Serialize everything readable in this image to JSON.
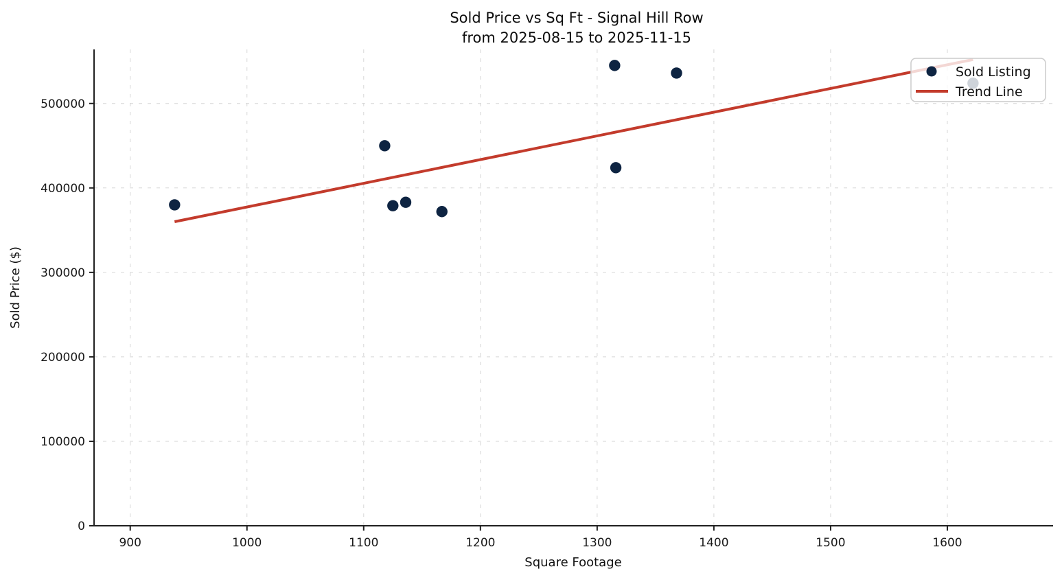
{
  "title": {
    "line1": "Sold Price vs Sq Ft - Signal Hill Row",
    "line2": "from 2025-08-15 to 2025-11-15"
  },
  "axes": {
    "xlabel": "Square Footage",
    "ylabel": "Sold Price ($)"
  },
  "legend": {
    "items": [
      {
        "label": "Sold Listing",
        "marker": "dot",
        "color": "#0e2442"
      },
      {
        "label": "Trend Line",
        "marker": "line",
        "color": "#c33b2c"
      }
    ]
  },
  "colors": {
    "point": "#0e2442",
    "trend": "#c33b2c",
    "grid": "#d6d6d6",
    "spine": "#1f1f1f",
    "legend_border": "#cccccc"
  },
  "chart_data": {
    "type": "scatter",
    "title": "Sold Price vs Sq Ft - Signal Hill Row\nfrom 2025-08-15 to 2025-11-15",
    "xlabel": "Square Footage",
    "ylabel": "Sold Price ($)",
    "xlim": [
      869,
      1690
    ],
    "ylim": [
      0,
      564000
    ],
    "x_ticks": [
      900,
      1000,
      1100,
      1200,
      1300,
      1400,
      1500,
      1600
    ],
    "y_ticks": [
      0,
      100000,
      200000,
      300000,
      400000,
      500000
    ],
    "grid": "dashed",
    "legend_position": "upper right",
    "series": [
      {
        "name": "Sold Listing",
        "type": "scatter",
        "color": "#0e2442",
        "marker_radius": 8.2,
        "points": [
          [
            938,
            380000
          ],
          [
            1118,
            450000
          ],
          [
            1125,
            379000
          ],
          [
            1136,
            383000
          ],
          [
            1167,
            372000
          ],
          [
            1315,
            545000
          ],
          [
            1316,
            424000
          ],
          [
            1368,
            536000
          ],
          [
            1622,
            524000
          ]
        ]
      },
      {
        "name": "Trend Line",
        "type": "line",
        "color": "#c33b2c",
        "stroke_width": 4,
        "points": [
          [
            938,
            360000
          ],
          [
            1622,
            552000
          ]
        ]
      }
    ]
  }
}
